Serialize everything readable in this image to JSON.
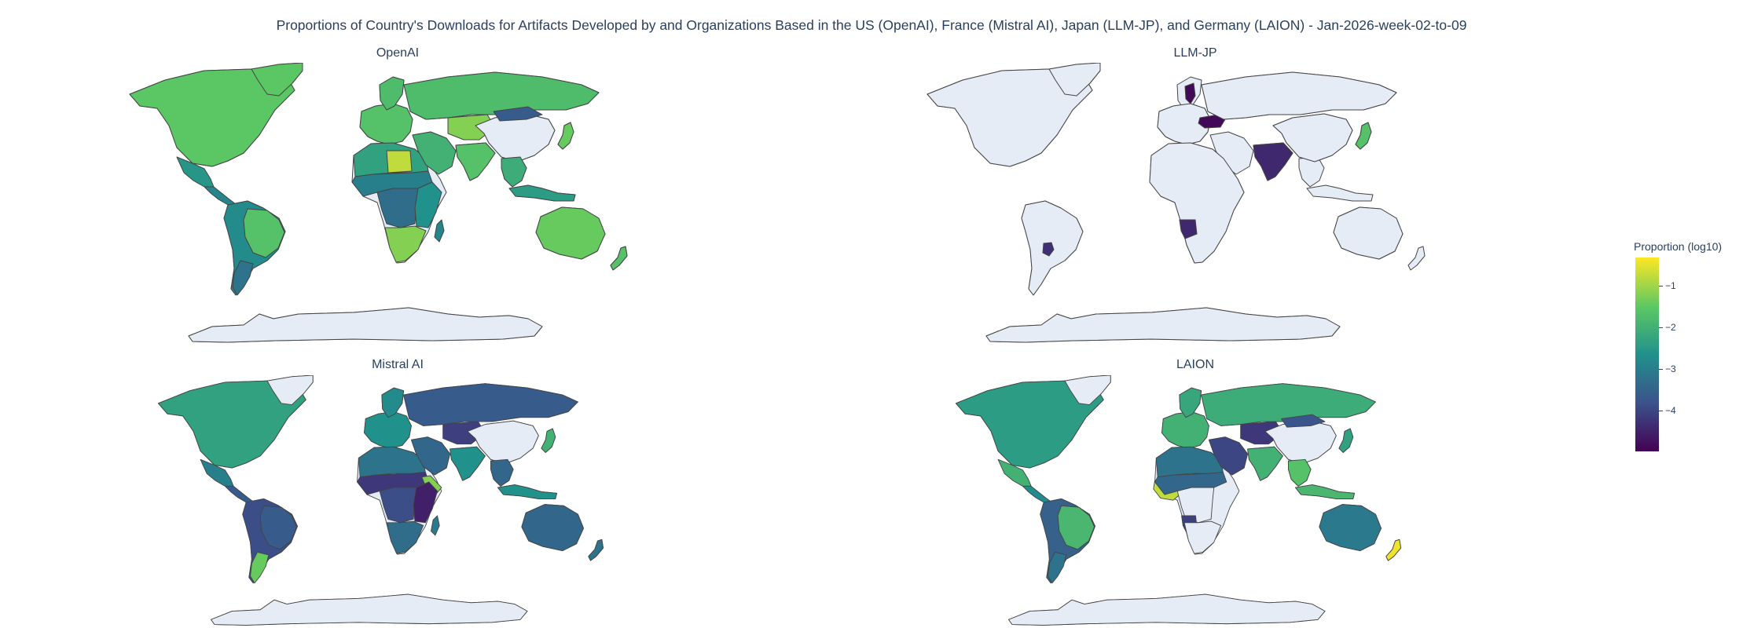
{
  "title": "Proportions of Country's Downloads for Artifacts Developed by and Organizations Based in the US (OpenAI), France (Mistral AI), Japan (LLM-JP), and Germany (LAION) - Jan-2026-week-02-to-09",
  "colorbar": {
    "title": "Proportion (log10)",
    "ticks": [
      "−1",
      "−2",
      "−3",
      "−4"
    ],
    "colorscale": [
      "#fde725",
      "#5ec962",
      "#21918c",
      "#3b528b",
      "#440154"
    ],
    "nodata_color": "#e5ecf6",
    "border_color": "#444444"
  },
  "chart_data": [
    {
      "type": "choropleth",
      "title": "OpenAI",
      "colorscale": "viridis",
      "value": "log10 proportion",
      "regions": [
        {
          "id": "north_america",
          "value": -1.9
        },
        {
          "id": "greenland",
          "value": -1.9
        },
        {
          "id": "mexico",
          "value": -2.8
        },
        {
          "id": "central_america",
          "value": -3.1
        },
        {
          "id": "south_america",
          "value": -3.0
        },
        {
          "id": "brazil",
          "value": -2.0
        },
        {
          "id": "argentina",
          "value": -3.4
        },
        {
          "id": "europe",
          "value": -2.0
        },
        {
          "id": "scandinavia",
          "value": -2.1
        },
        {
          "id": "russia",
          "value": -2.1
        },
        {
          "id": "north_africa",
          "value": -2.6
        },
        {
          "id": "libya",
          "value": -1.2
        },
        {
          "id": "sahel",
          "value": -3.2
        },
        {
          "id": "central_africa",
          "value": -3.5
        },
        {
          "id": "east_africa",
          "value": -2.9
        },
        {
          "id": "southern_africa",
          "value": -1.6
        },
        {
          "id": "madagascar",
          "value": -3.1
        },
        {
          "id": "middle_east",
          "value": -2.3
        },
        {
          "id": "central_asia",
          "value": -1.6
        },
        {
          "id": "india",
          "value": -2.0
        },
        {
          "id": "china",
          "value": null
        },
        {
          "id": "mongolia",
          "value": -3.8
        },
        {
          "id": "japan",
          "value": -1.8
        },
        {
          "id": "southeast_asia",
          "value": -2.4
        },
        {
          "id": "indonesia",
          "value": -2.7
        },
        {
          "id": "australia",
          "value": -1.8
        },
        {
          "id": "new_zealand",
          "value": -2.0
        },
        {
          "id": "antarctica",
          "value": null
        }
      ]
    },
    {
      "type": "choropleth",
      "title": "LLM-JP",
      "colorscale": "viridis",
      "value": "log10 proportion",
      "regions": [
        {
          "id": "north_america",
          "value": null
        },
        {
          "id": "greenland",
          "value": null
        },
        {
          "id": "south_america",
          "value": null
        },
        {
          "id": "paraguay",
          "value": -4.4
        },
        {
          "id": "europe",
          "value": null
        },
        {
          "id": "sweden",
          "value": -4.9
        },
        {
          "id": "ukraine",
          "value": -4.9
        },
        {
          "id": "russia",
          "value": null
        },
        {
          "id": "africa",
          "value": null
        },
        {
          "id": "angola",
          "value": -4.5
        },
        {
          "id": "india",
          "value": -4.5
        },
        {
          "id": "china",
          "value": null
        },
        {
          "id": "japan",
          "value": -2.0
        },
        {
          "id": "australia",
          "value": null
        },
        {
          "id": "antarctica",
          "value": null
        }
      ]
    },
    {
      "type": "choropleth",
      "title": "Mistral AI",
      "colorscale": "viridis",
      "value": "log10 proportion",
      "regions": [
        {
          "id": "north_america",
          "value": -2.6
        },
        {
          "id": "greenland",
          "value": null
        },
        {
          "id": "mexico",
          "value": -3.2
        },
        {
          "id": "central_america",
          "value": -3.8
        },
        {
          "id": "south_america",
          "value": -4.0
        },
        {
          "id": "brazil",
          "value": -3.8
        },
        {
          "id": "argentina",
          "value": -1.8
        },
        {
          "id": "europe",
          "value": -2.9
        },
        {
          "id": "scandinavia",
          "value": -3.0
        },
        {
          "id": "russia",
          "value": -3.8
        },
        {
          "id": "north_africa",
          "value": -3.4
        },
        {
          "id": "sahel",
          "value": -4.3
        },
        {
          "id": "horn_of_africa",
          "value": -1.6
        },
        {
          "id": "central_africa",
          "value": -4.0
        },
        {
          "id": "east_africa",
          "value": -4.6
        },
        {
          "id": "southern_africa",
          "value": -3.5
        },
        {
          "id": "madagascar",
          "value": -3.3
        },
        {
          "id": "middle_east",
          "value": -3.6
        },
        {
          "id": "central_asia",
          "value": -4.2
        },
        {
          "id": "india",
          "value": -2.9
        },
        {
          "id": "china",
          "value": null
        },
        {
          "id": "japan",
          "value": -2.3
        },
        {
          "id": "southeast_asia",
          "value": -3.6
        },
        {
          "id": "indonesia",
          "value": -2.9
        },
        {
          "id": "australia",
          "value": -3.6
        },
        {
          "id": "new_zealand",
          "value": -3.4
        },
        {
          "id": "antarctica",
          "value": null
        }
      ]
    },
    {
      "type": "choropleth",
      "title": "LAION",
      "colorscale": "viridis",
      "value": "log10 proportion",
      "regions": [
        {
          "id": "north_america",
          "value": -2.7
        },
        {
          "id": "greenland",
          "value": null
        },
        {
          "id": "mexico",
          "value": -2.3
        },
        {
          "id": "central_america",
          "value": -3.0
        },
        {
          "id": "south_america",
          "value": -3.7
        },
        {
          "id": "brazil",
          "value": -2.2
        },
        {
          "id": "argentina",
          "value": -3.4
        },
        {
          "id": "europe",
          "value": -2.3
        },
        {
          "id": "scandinavia",
          "value": -2.5
        },
        {
          "id": "russia",
          "value": -2.4
        },
        {
          "id": "north_africa",
          "value": -3.4
        },
        {
          "id": "west_africa",
          "value": -1.2
        },
        {
          "id": "sahel",
          "value": -3.6
        },
        {
          "id": "central_africa",
          "value": null
        },
        {
          "id": "angola",
          "value": -4.2
        },
        {
          "id": "southern_africa",
          "value": null
        },
        {
          "id": "middle_east",
          "value": -4.1
        },
        {
          "id": "central_asia",
          "value": -4.3
        },
        {
          "id": "india",
          "value": -2.3
        },
        {
          "id": "china",
          "value": null
        },
        {
          "id": "mongolia",
          "value": -3.9
        },
        {
          "id": "japan",
          "value": -2.6
        },
        {
          "id": "southeast_asia",
          "value": -2.0
        },
        {
          "id": "indonesia",
          "value": -2.2
        },
        {
          "id": "australia",
          "value": -3.3
        },
        {
          "id": "new_zealand",
          "value": -0.9
        },
        {
          "id": "antarctica",
          "value": null
        }
      ]
    }
  ]
}
